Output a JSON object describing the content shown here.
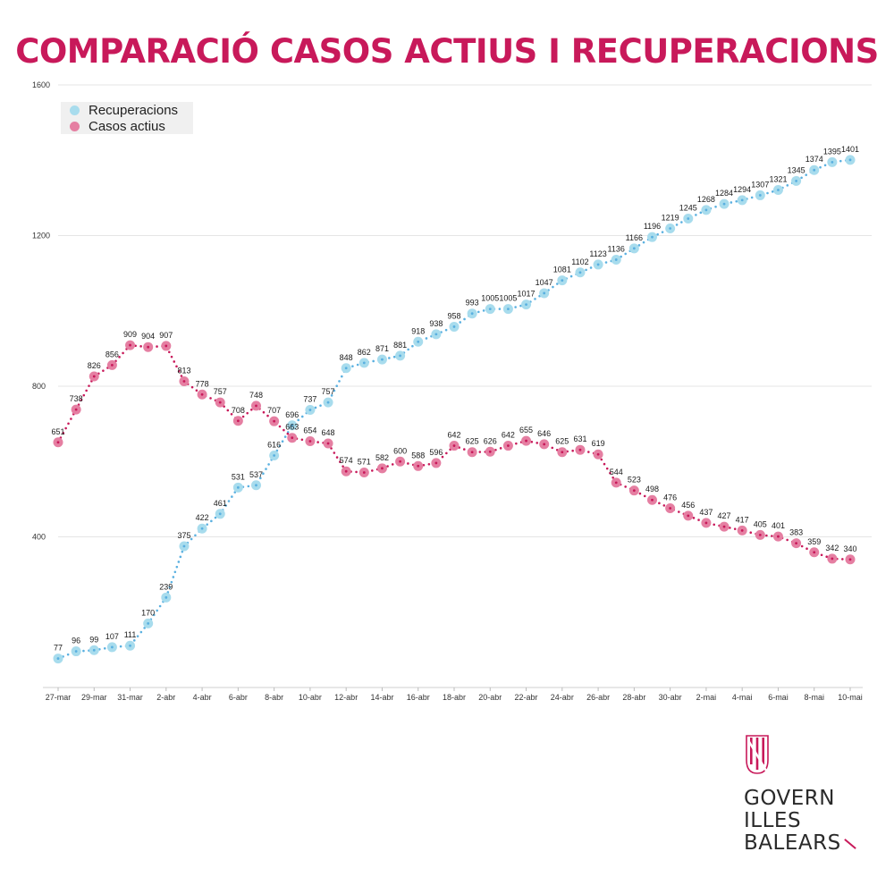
{
  "title": "COMPARACIÓ CASOS ACTIUS I RECUPERACIONS",
  "colors": {
    "title": "#c8195a",
    "recuperacions": "#a8dced",
    "recuperacions_dots": "#5ab0e0",
    "casos_actius": "#e57fa2",
    "casos_actius_dots": "#c8195a",
    "grid": "#e5e5e5"
  },
  "logo": {
    "line1": "GOVERN",
    "line2": "ILLES",
    "line3": "BALEARS"
  },
  "chart_data": {
    "type": "line",
    "title": "COMPARACIÓ CASOS ACTIUS I RECUPERACIONS",
    "xlabel": "",
    "ylabel": "",
    "ylim": [
      0,
      1600
    ],
    "yticks": [
      400,
      800,
      1200,
      1600
    ],
    "grid": true,
    "legend_position": "top-left",
    "x_tick_labels": [
      "27-mar",
      "29-mar",
      "31-mar",
      "2-abr",
      "4-abr",
      "6-abr",
      "8-abr",
      "10-abr",
      "12-abr",
      "14-abr",
      "16-abr",
      "18-abr",
      "20-abr",
      "22-abr",
      "24-abr",
      "26-abr",
      "28-abr",
      "30-abr",
      "2-mai",
      "4-mai",
      "6-mai",
      "8-mai",
      "10-mai"
    ],
    "x": [
      "27-mar",
      "28-mar",
      "29-mar",
      "30-mar",
      "31-mar",
      "1-abr",
      "2-abr",
      "3-abr",
      "4-abr",
      "5-abr",
      "6-abr",
      "7-abr",
      "8-abr",
      "9-abr",
      "10-abr",
      "11-abr",
      "12-abr",
      "13-abr",
      "14-abr",
      "15-abr",
      "16-abr",
      "17-abr",
      "18-abr",
      "19-abr",
      "20-abr",
      "21-abr",
      "22-abr",
      "23-abr",
      "24-abr",
      "25-abr",
      "26-abr",
      "27-abr",
      "28-abr",
      "29-abr",
      "30-abr",
      "1-mai",
      "2-mai",
      "3-mai",
      "4-mai",
      "5-mai",
      "6-mai",
      "7-mai",
      "8-mai",
      "9-mai",
      "10-mai"
    ],
    "series": [
      {
        "name": "Recuperacions",
        "values": [
          77,
          96,
          99,
          107,
          111,
          170,
          239,
          375,
          422,
          461,
          531,
          537,
          616,
          696,
          737,
          757,
          848,
          862,
          871,
          881,
          918,
          938,
          958,
          993,
          1005,
          1005,
          1017,
          1047,
          1081,
          1102,
          1123,
          1136,
          1166,
          1196,
          1219,
          1245,
          1268,
          1284,
          1294,
          1307,
          1321,
          1345,
          1374,
          1395,
          1401
        ]
      },
      {
        "name": "Casos actius",
        "values": [
          651,
          738,
          826,
          856,
          909,
          904,
          907,
          813,
          778,
          757,
          708,
          748,
          707,
          663,
          654,
          648,
          574,
          571,
          582,
          600,
          588,
          596,
          642,
          625,
          626,
          642,
          655,
          646,
          625,
          631,
          619,
          544,
          523,
          498,
          476,
          456,
          437,
          427,
          417,
          405,
          401,
          383,
          359,
          342,
          340
        ]
      }
    ]
  }
}
